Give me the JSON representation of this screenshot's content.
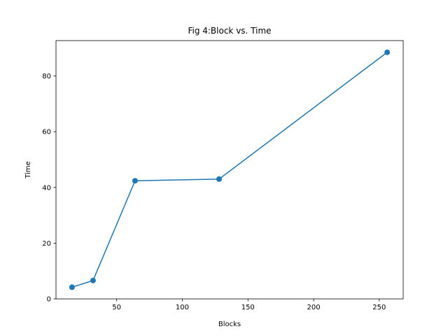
{
  "chart_data": {
    "type": "line",
    "title": "Fig 4:Block vs. Time",
    "xlabel": "Blocks",
    "ylabel": "Time",
    "x": [
      16,
      32,
      64,
      128,
      256
    ],
    "series": [
      {
        "values": [
          4.2,
          6.6,
          42.4,
          43.0,
          88.5
        ],
        "color": "#1f77b4"
      }
    ],
    "xlim": [
      3.8,
      268.2
    ],
    "ylim": [
      0,
      92.7
    ],
    "xticks": [
      50,
      100,
      150,
      200,
      250
    ],
    "yticks": [
      0,
      20,
      40,
      60,
      80
    ],
    "marker": "circle",
    "grid": false,
    "legend": "none"
  }
}
